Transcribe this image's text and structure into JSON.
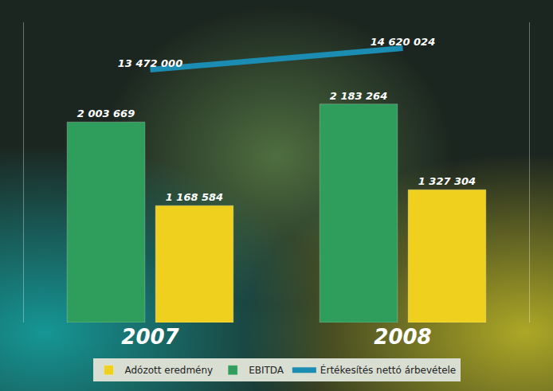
{
  "chart_data": {
    "type": "bar",
    "categories": [
      "2007",
      "2008"
    ],
    "series": [
      {
        "name": "EBITDA",
        "color": "#2f9d5c",
        "values": [
          2003669,
          2183264
        ],
        "value_labels": [
          "2 003 669",
          "2 183 264"
        ]
      },
      {
        "name": "Adózott eredmény",
        "color": "#f0d01e",
        "values": [
          1168584,
          1327304
        ],
        "value_labels": [
          "1 168 584",
          "1 327 304"
        ]
      },
      {
        "name": "Értékesítés nettó árbevétele",
        "type": "line",
        "axis": "y2",
        "color": "#1b8db3",
        "values": [
          13472000,
          14620024
        ],
        "value_labels": [
          "13 472 000",
          "14 620 024"
        ]
      }
    ],
    "ylim": [
      0,
      3000000
    ],
    "y2lim": [
      0,
      16000000
    ],
    "data_labels": true,
    "tick_labels": "x",
    "legend": "bottom",
    "grid": false
  }
}
